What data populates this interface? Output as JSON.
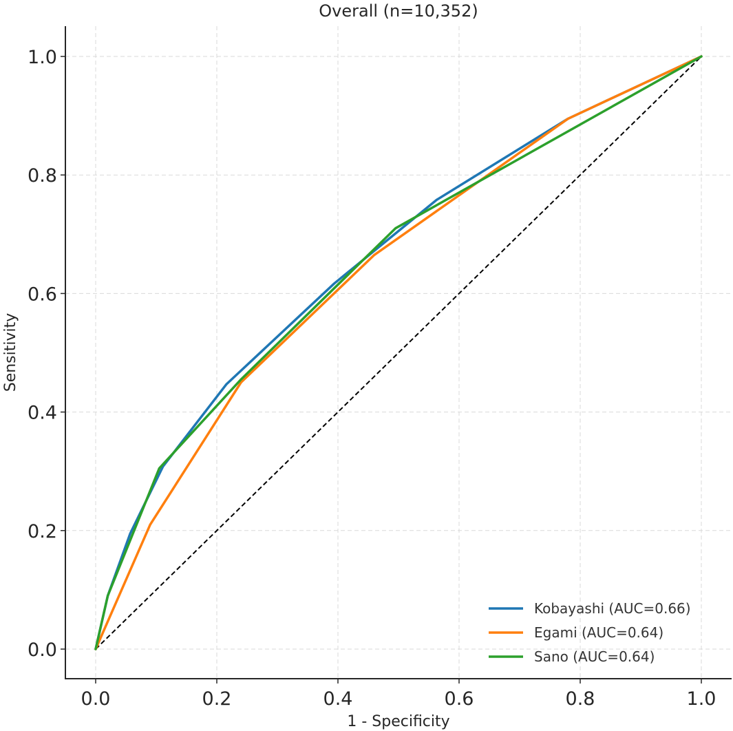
{
  "chart_data": {
    "type": "line",
    "title": "Overall (n=10,352)",
    "xlabel": "1 - Specificity",
    "ylabel": "Sensitivity",
    "xlim": [
      -0.05,
      1.02
    ],
    "ylim": [
      -0.05,
      1.05
    ],
    "xticks": [
      0.0,
      0.2,
      0.4,
      0.6,
      0.8,
      1.0
    ],
    "yticks": [
      0.0,
      0.2,
      0.4,
      0.6,
      0.8,
      1.0
    ],
    "xtick_labels": [
      "0.0",
      "0.2",
      "0.4",
      "0.6",
      "0.8",
      "1.0"
    ],
    "ytick_labels": [
      "0.0",
      "0.2",
      "0.4",
      "0.6",
      "0.8",
      "1.0"
    ],
    "grid": true,
    "legend_position": "bottom-right",
    "series": [
      {
        "name": "Kobayashi (AUC=0.66)",
        "color": "#1f77b4",
        "x": [
          0.0,
          0.02,
          0.057,
          0.111,
          0.216,
          0.394,
          0.563,
          0.78,
          1.0
        ],
        "y": [
          0.0,
          0.09,
          0.195,
          0.308,
          0.447,
          0.617,
          0.758,
          0.895,
          1.0
        ]
      },
      {
        "name": "Egami (AUC=0.64)",
        "color": "#ff7f0e",
        "x": [
          0.0,
          0.09,
          0.24,
          0.46,
          0.78,
          1.0
        ],
        "y": [
          0.0,
          0.21,
          0.45,
          0.665,
          0.895,
          1.0
        ]
      },
      {
        "name": "Sano (AUC=0.64)",
        "color": "#2ca02c",
        "x": [
          0.0,
          0.02,
          0.105,
          0.24,
          0.495,
          1.0
        ],
        "y": [
          0.0,
          0.09,
          0.305,
          0.455,
          0.71,
          1.0
        ]
      }
    ],
    "reference_line": {
      "name": "chance",
      "color": "#000000",
      "style": "dashed",
      "x": [
        0.0,
        1.0
      ],
      "y": [
        0.0,
        1.0
      ]
    }
  }
}
